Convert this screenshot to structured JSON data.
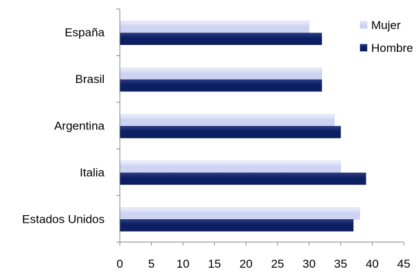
{
  "chart_data": {
    "type": "bar",
    "orientation": "horizontal",
    "title": "",
    "xlabel": "",
    "ylabel": "",
    "categories": [
      "España",
      "Brasil",
      "Argentina",
      "Italia",
      "Estados Unidos"
    ],
    "series": [
      {
        "name": "Mujer",
        "values": [
          30,
          32,
          34,
          35,
          38
        ],
        "color": "#cdd4f3",
        "color_highlight": "#eef0fb"
      },
      {
        "name": "Hombre",
        "values": [
          32,
          32,
          35,
          39,
          37
        ],
        "color": "#0d1f63",
        "color_highlight": "#2a3c82"
      }
    ],
    "xlim": [
      0,
      45
    ],
    "x_ticks": [
      "0",
      "5",
      "10",
      "15",
      "20",
      "25",
      "30",
      "35",
      "40",
      "45"
    ],
    "grid": false,
    "legend_position": "top-right"
  }
}
